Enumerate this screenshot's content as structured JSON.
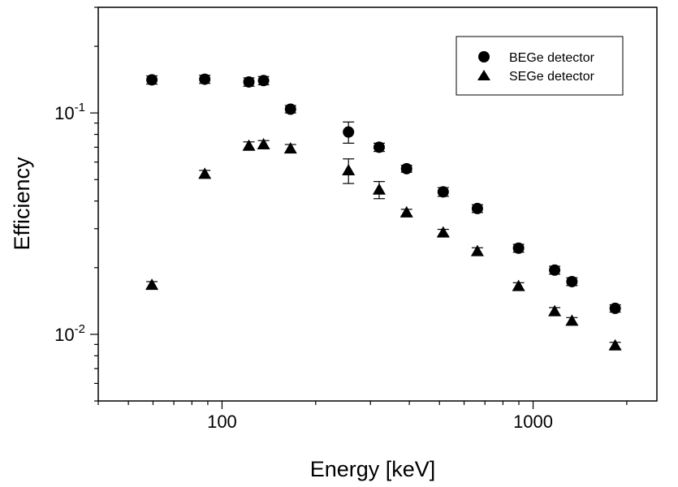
{
  "chart_data": {
    "type": "scatter",
    "xlabel": "Energy [keV]",
    "ylabel": "Efficiency",
    "x_scale": "log",
    "y_scale": "log",
    "xlim": [
      40,
      2500
    ],
    "ylim": [
      0.005,
      0.3
    ],
    "x_major_ticks": [
      {
        "value": 100,
        "label": "100"
      },
      {
        "value": 1000,
        "label": "1000"
      }
    ],
    "y_major_ticks": [
      {
        "value": 0.01,
        "base": "10",
        "exp": "-2"
      },
      {
        "value": 0.1,
        "base": "10",
        "exp": "-1"
      }
    ],
    "grid": false,
    "legend": "top-right",
    "colors": {
      "marker": "#000000",
      "axis": "#000000",
      "background": "#ffffff"
    },
    "series": [
      {
        "name": "BEGe detector",
        "marker": "circle",
        "points": [
          {
            "x": 59.5,
            "y": 0.141,
            "err": 0.006
          },
          {
            "x": 88,
            "y": 0.142,
            "err": 0.006
          },
          {
            "x": 122,
            "y": 0.138,
            "err": 0.006
          },
          {
            "x": 136,
            "y": 0.14,
            "err": 0.006
          },
          {
            "x": 166,
            "y": 0.104,
            "err": 0.004
          },
          {
            "x": 255,
            "y": 0.082,
            "err": 0.009
          },
          {
            "x": 320,
            "y": 0.07,
            "err": 0.003
          },
          {
            "x": 392,
            "y": 0.056,
            "err": 0.002
          },
          {
            "x": 514,
            "y": 0.044,
            "err": 0.002
          },
          {
            "x": 662,
            "y": 0.037,
            "err": 0.0015
          },
          {
            "x": 898,
            "y": 0.0245,
            "err": 0.001
          },
          {
            "x": 1173,
            "y": 0.0195,
            "err": 0.0008
          },
          {
            "x": 1333,
            "y": 0.0173,
            "err": 0.0007
          },
          {
            "x": 1836,
            "y": 0.0131,
            "err": 0.0005
          }
        ]
      },
      {
        "name": "SEGe detector",
        "marker": "triangle",
        "points": [
          {
            "x": 59.5,
            "y": 0.0167,
            "err": 0.0006
          },
          {
            "x": 88,
            "y": 0.053,
            "err": 0.002
          },
          {
            "x": 122,
            "y": 0.071,
            "err": 0.003
          },
          {
            "x": 136,
            "y": 0.072,
            "err": 0.003
          },
          {
            "x": 166,
            "y": 0.069,
            "err": 0.003
          },
          {
            "x": 255,
            "y": 0.055,
            "err": 0.007
          },
          {
            "x": 320,
            "y": 0.045,
            "err": 0.004
          },
          {
            "x": 392,
            "y": 0.0355,
            "err": 0.0012
          },
          {
            "x": 514,
            "y": 0.0288,
            "err": 0.001
          },
          {
            "x": 662,
            "y": 0.0237,
            "err": 0.0009
          },
          {
            "x": 898,
            "y": 0.0165,
            "err": 0.0006
          },
          {
            "x": 1173,
            "y": 0.0127,
            "err": 0.0005
          },
          {
            "x": 1333,
            "y": 0.0115,
            "err": 0.0004
          },
          {
            "x": 1836,
            "y": 0.0089,
            "err": 0.0003
          }
        ]
      }
    ]
  }
}
